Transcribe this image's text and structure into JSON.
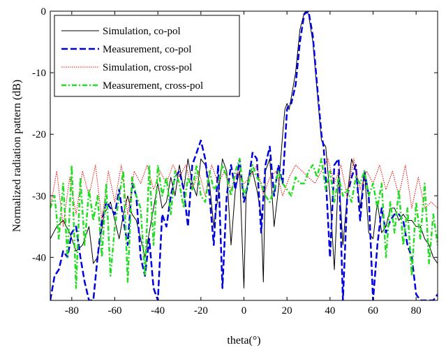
{
  "chart_data": {
    "type": "line",
    "title": "",
    "xlabel": "theta(°)",
    "ylabel": "Normalized radiation pattern (dB)",
    "xlim": [
      -90,
      90
    ],
    "ylim": [
      -47,
      0
    ],
    "xticks": [
      -80,
      -60,
      -40,
      -20,
      0,
      20,
      40,
      60,
      80
    ],
    "yticks": [
      0,
      -10,
      -20,
      -30,
      -40
    ],
    "grid": false,
    "legend_position": "top-left",
    "series": [
      {
        "name": "Simulation, co-pol",
        "color": "#000000",
        "style": "solid",
        "x": [
          -90,
          -87,
          -84,
          -81,
          -78,
          -75,
          -72,
          -70,
          -68,
          -65,
          -62,
          -60,
          -58,
          -56,
          -54,
          -52,
          -50,
          -48,
          -46,
          -44,
          -42,
          -40,
          -38,
          -36,
          -34,
          -32,
          -30,
          -28,
          -26,
          -24,
          -22,
          -20,
          -18,
          -16,
          -14,
          -12,
          -10,
          -8,
          -6,
          -4,
          -2,
          0,
          1,
          2,
          4,
          6,
          8,
          9,
          10,
          12,
          14,
          16,
          18,
          19,
          20,
          21,
          22,
          24,
          26,
          28,
          29,
          30,
          32,
          34,
          36,
          38,
          40,
          42,
          43,
          44,
          46,
          48,
          50,
          52,
          54,
          56,
          58,
          60,
          62,
          64,
          66,
          68,
          70,
          72,
          74,
          76,
          78,
          80,
          82,
          84,
          86,
          88,
          90
        ],
        "y": [
          -37,
          -35,
          -34,
          -36,
          -39,
          -38,
          -35,
          -41,
          -40,
          -33,
          -31,
          -34,
          -37,
          -33,
          -30,
          -33,
          -34,
          -37,
          -40,
          -36,
          -32,
          -28,
          -32,
          -31,
          -27,
          -30,
          -25,
          -29,
          -24,
          -28,
          -30,
          -24,
          -25,
          -28,
          -35,
          -30,
          -24,
          -26,
          -38,
          -29,
          -26,
          -45,
          -30,
          -27,
          -26,
          -29,
          -33,
          -44,
          -26,
          -24,
          -35,
          -29,
          -20,
          -16,
          -15,
          -16,
          -14,
          -10,
          -3,
          -0.3,
          0,
          -0.5,
          -5,
          -13,
          -21,
          -22,
          -30,
          -42,
          -34,
          -26,
          -38,
          -30,
          -24,
          -26,
          -32,
          -26,
          -36,
          -37,
          -31,
          -36,
          -35,
          -32,
          -32,
          -34,
          -33,
          -34,
          -34,
          -35,
          -35,
          -37,
          -38,
          -40,
          -41
        ]
      },
      {
        "name": "Measurement, co-pol",
        "color": "#0000dd",
        "style": "dashed",
        "x": [
          -90,
          -88,
          -86,
          -84,
          -82,
          -80,
          -78,
          -76,
          -74,
          -72,
          -70,
          -68,
          -66,
          -64,
          -62,
          -60,
          -58,
          -56,
          -54,
          -52,
          -50,
          -48,
          -46,
          -44,
          -42,
          -40,
          -38,
          -36,
          -34,
          -32,
          -30,
          -28,
          -26,
          -24,
          -22,
          -20,
          -18,
          -16,
          -14,
          -12,
          -10,
          -8,
          -6,
          -4,
          -2,
          0,
          2,
          4,
          6,
          8,
          10,
          12,
          14,
          16,
          18,
          20,
          21,
          22,
          24,
          26,
          28,
          30,
          32,
          34,
          36,
          37,
          38,
          40,
          42,
          44,
          46,
          48,
          50,
          52,
          54,
          56,
          58,
          60,
          62,
          64,
          66,
          68,
          70,
          72,
          74,
          76,
          78,
          80,
          82,
          84,
          86,
          88,
          90
        ],
        "y": [
          -47,
          -43,
          -42,
          -39,
          -40,
          -36,
          -35,
          -40,
          -44,
          -47,
          -47,
          -40,
          -34,
          -31,
          -32,
          -33,
          -29,
          -34,
          -38,
          -28,
          -30,
          -40,
          -43,
          -37,
          -45,
          -47,
          -33,
          -35,
          -30,
          -27,
          -26,
          -29,
          -35,
          -25,
          -23,
          -21,
          -24,
          -30,
          -38,
          -25,
          -45,
          -30,
          -25,
          -29,
          -24,
          -31,
          -28,
          -23,
          -24,
          -36,
          -25,
          -22,
          -30,
          -25,
          -28,
          -16,
          -15,
          -15,
          -12,
          -5,
          -0.5,
          0,
          -4,
          -12,
          -20,
          -22,
          -27,
          -40,
          -25,
          -24,
          -47,
          -30,
          -27,
          -25,
          -34,
          -26,
          -30,
          -47,
          -38,
          -32,
          -36,
          -34,
          -33,
          -33,
          -34,
          -38,
          -40,
          -46,
          -47,
          -47,
          -47,
          -47,
          -46
        ]
      },
      {
        "name": "Simulation, cross-pol",
        "color": "#ee0000",
        "style": "dotted",
        "x": [
          -90,
          -87,
          -84,
          -81,
          -78,
          -75,
          -72,
          -69,
          -66,
          -63,
          -60,
          -57,
          -54,
          -51,
          -48,
          -45,
          -42,
          -39,
          -36,
          -33,
          -30,
          -27,
          -24,
          -21,
          -18,
          -15,
          -12,
          -9,
          -6,
          -3,
          0,
          3,
          6,
          9,
          12,
          15,
          18,
          21,
          24,
          27,
          30,
          33,
          36,
          39,
          42,
          45,
          48,
          51,
          54,
          57,
          60,
          63,
          66,
          69,
          72,
          75,
          78,
          81,
          84,
          87,
          90
        ],
        "y": [
          -32,
          -26,
          -35,
          -27,
          -33,
          -26,
          -30,
          -25,
          -34,
          -26,
          -31,
          -25,
          -33,
          -26,
          -28,
          -25,
          -29,
          -26,
          -28,
          -25,
          -27,
          -25,
          -29,
          -26,
          -30,
          -25,
          -28,
          -26,
          -29,
          -26,
          -28,
          -27,
          -25,
          -30,
          -27,
          -26,
          -30,
          -27,
          -25,
          -26,
          -27,
          -28,
          -26,
          -24,
          -28,
          -25,
          -30,
          -24,
          -29,
          -26,
          -28,
          -25,
          -29,
          -26,
          -30,
          -25,
          -32,
          -27,
          -32,
          -31,
          -32
        ]
      },
      {
        "name": "Measurement, cross-pol",
        "color": "#22dd22",
        "style": "dashdot",
        "x": [
          -90,
          -88,
          -86,
          -84,
          -82,
          -80,
          -78,
          -76,
          -74,
          -72,
          -70,
          -68,
          -66,
          -64,
          -62,
          -60,
          -58,
          -56,
          -54,
          -52,
          -50,
          -48,
          -46,
          -44,
          -42,
          -40,
          -38,
          -36,
          -34,
          -32,
          -30,
          -28,
          -26,
          -24,
          -22,
          -20,
          -18,
          -16,
          -14,
          -12,
          -10,
          -8,
          -6,
          -4,
          -2,
          0,
          2,
          4,
          6,
          8,
          10,
          12,
          14,
          16,
          18,
          20,
          22,
          24,
          26,
          28,
          30,
          32,
          34,
          36,
          38,
          40,
          42,
          44,
          46,
          48,
          50,
          52,
          54,
          56,
          58,
          60,
          62,
          64,
          66,
          68,
          70,
          72,
          74,
          76,
          78,
          80,
          82,
          84,
          86,
          88,
          90
        ],
        "y": [
          -32,
          -30,
          -37,
          -28,
          -40,
          -25,
          -45,
          -27,
          -38,
          -29,
          -34,
          -30,
          -40,
          -28,
          -43,
          -35,
          -30,
          -26,
          -44,
          -27,
          -30,
          -32,
          -43,
          -25,
          -38,
          -25,
          -30,
          -27,
          -33,
          -26,
          -28,
          -32,
          -27,
          -29,
          -25,
          -30,
          -31,
          -26,
          -29,
          -28,
          -25,
          -27,
          -30,
          -26,
          -24,
          -30,
          -28,
          -25,
          -27,
          -28,
          -30,
          -31,
          -29,
          -26,
          -28,
          -29,
          -30,
          -27,
          -28,
          -28,
          -26,
          -25,
          -27,
          -24,
          -29,
          -26,
          -31,
          -27,
          -30,
          -29,
          -31,
          -27,
          -28,
          -26,
          -30,
          -28,
          -32,
          -28,
          -40,
          -31,
          -36,
          -29,
          -38,
          -32,
          -43,
          -31,
          -37,
          -28,
          -41,
          -33,
          -38
        ]
      }
    ]
  }
}
